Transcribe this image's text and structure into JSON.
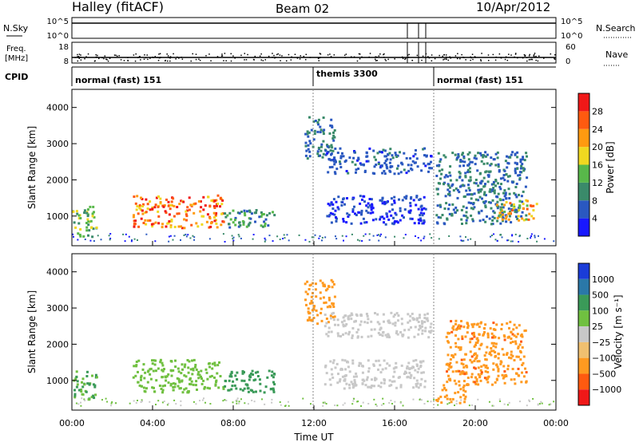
{
  "header": {
    "station": "Halley (fitACF)",
    "beam": "Beam 02",
    "date": "10/Apr/2012"
  },
  "sky_panel": {
    "label": "N.Sky",
    "right_label": "N.Search",
    "left_ticks": [
      "10^5",
      "10^0"
    ],
    "right_ticks": [
      "10^5",
      "10^0"
    ]
  },
  "freq_panel": {
    "label_line1": "Freq.",
    "label_line2": "[MHz]",
    "right_label": "Nave",
    "left_ticks": [
      "18",
      "8"
    ],
    "right_ticks": [
      "60",
      "0"
    ]
  },
  "cpid_panel": {
    "label": "CPID",
    "segments": [
      {
        "label": "normal (fast) 151",
        "start_hour": 0
      },
      {
        "label": "themis 3300",
        "start_hour": 12
      },
      {
        "label": "normal (fast) 151",
        "start_hour": 18
      }
    ]
  },
  "x_axis": {
    "label": "Time UT",
    "ticks": [
      "00:00",
      "04:00",
      "08:00",
      "12:00",
      "16:00",
      "20:00",
      "00:00"
    ]
  },
  "power_panel": {
    "ylabel": "Slant Range [km]",
    "yticks": [
      "1000",
      "2000",
      "3000",
      "4000"
    ],
    "colorbar_label": "Power [dB]",
    "colorbar_ticks": [
      "4",
      "8",
      "12",
      "16",
      "20",
      "24",
      "28"
    ],
    "colors": [
      "#1818ff",
      "#2a58c0",
      "#3a8a6a",
      "#58b84a",
      "#f0d820",
      "#ff9a10",
      "#ff5a10",
      "#f01818"
    ]
  },
  "velocity_panel": {
    "ylabel": "Slant Range [km]",
    "yticks": [
      "1000",
      "2000",
      "3000",
      "4000"
    ],
    "colorbar_label": "Velocity [m s⁻¹]",
    "colorbar_ticks": [
      "1000",
      "500",
      "100",
      "25",
      "−25",
      "−100",
      "−500",
      "−1000"
    ],
    "colors": [
      "#1a3cd8",
      "#2a78a8",
      "#3a9a58",
      "#70c040",
      "#c8c8c8",
      "#f0c070",
      "#ff9a20",
      "#ff5a10",
      "#f01818"
    ]
  },
  "chart_data": {
    "type": "heatmap",
    "x_range_hours": [
      0,
      24
    ],
    "y_range_km": [
      180,
      4500
    ],
    "gridlines": "vertical dotted at 12:00 and 18:00",
    "power_regions_db": [
      {
        "t0": 0.0,
        "t1": 1.2,
        "r0": 450,
        "r1": 1300,
        "level": 16
      },
      {
        "t0": 3.0,
        "t1": 7.5,
        "r0": 700,
        "r1": 1600,
        "level": 26
      },
      {
        "t0": 7.5,
        "t1": 10.0,
        "r0": 700,
        "r1": 1200,
        "level": 12
      },
      {
        "t0": 11.5,
        "t1": 13.0,
        "r0": 2600,
        "r1": 3800,
        "level": 10
      },
      {
        "t0": 12.5,
        "t1": 17.8,
        "r0": 2200,
        "r1": 2900,
        "level": 8
      },
      {
        "t0": 12.5,
        "t1": 17.5,
        "r0": 800,
        "r1": 1600,
        "level": 6
      },
      {
        "t0": 18.0,
        "t1": 22.5,
        "r0": 800,
        "r1": 2800,
        "level": 10
      },
      {
        "t0": 21.0,
        "t1": 23.0,
        "r0": 900,
        "r1": 1500,
        "level": 22
      }
    ],
    "velocity_regions_ms": [
      {
        "t0": 0.0,
        "t1": 1.2,
        "r0": 500,
        "r1": 1300,
        "level": 100
      },
      {
        "t0": 3.0,
        "t1": 7.5,
        "r0": 700,
        "r1": 1600,
        "level": 50
      },
      {
        "t0": 7.5,
        "t1": 10.0,
        "r0": 700,
        "r1": 1300,
        "level": 150
      },
      {
        "t0": 11.5,
        "t1": 13.0,
        "r0": 2600,
        "r1": 3800,
        "level": -300
      },
      {
        "t0": 12.5,
        "t1": 17.8,
        "r0": 2200,
        "r1": 2900,
        "level": 0
      },
      {
        "t0": 12.5,
        "t1": 17.5,
        "r0": 800,
        "r1": 1600,
        "level": 0
      },
      {
        "t0": 18.5,
        "t1": 22.5,
        "r0": 900,
        "r1": 2700,
        "level": -400
      },
      {
        "t0": 18.0,
        "t1": 19.5,
        "r0": 400,
        "r1": 900,
        "level": -200
      }
    ]
  }
}
